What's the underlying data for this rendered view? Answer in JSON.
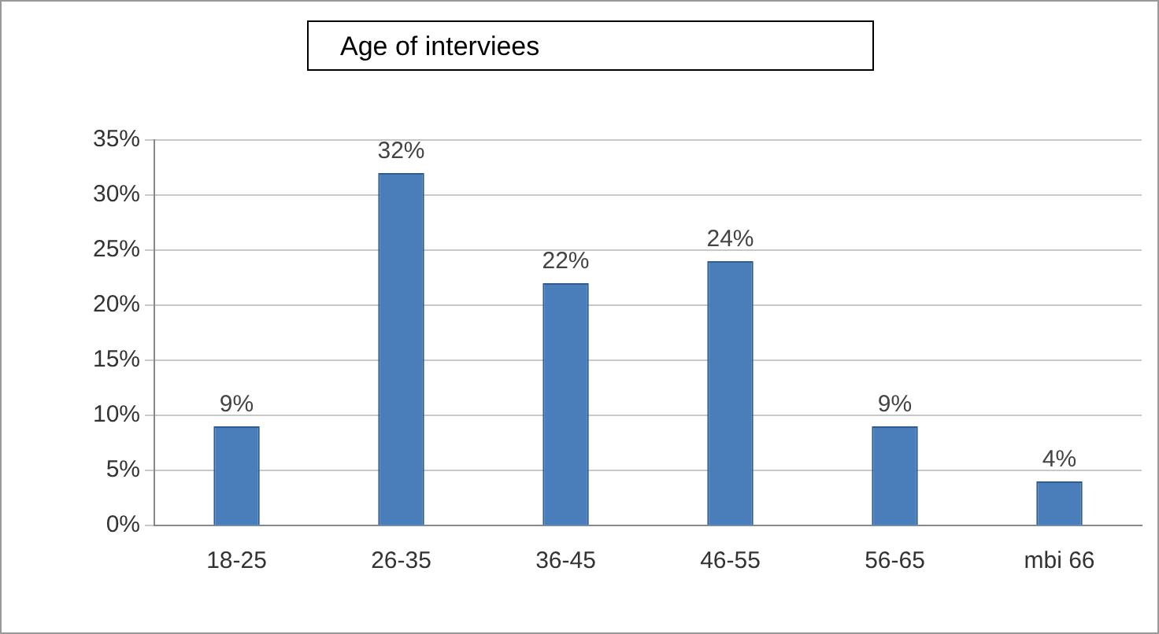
{
  "chart_data": {
    "type": "bar",
    "title": "Age of interviees",
    "categories": [
      "18-25",
      "26-35",
      "36-45",
      "46-55",
      "56-65",
      "mbi 66"
    ],
    "values": [
      9,
      32,
      22,
      24,
      9,
      4
    ],
    "value_labels": [
      "9%",
      "32%",
      "22%",
      "24%",
      "9%",
      "4%"
    ],
    "color": "#4a7ebb",
    "ylim": [
      0,
      35
    ],
    "yticks": [
      {
        "value": 0,
        "label": "0%"
      },
      {
        "value": 5,
        "label": "5%"
      },
      {
        "value": 10,
        "label": "10%"
      },
      {
        "value": 15,
        "label": "15%"
      },
      {
        "value": 20,
        "label": "20%"
      },
      {
        "value": 25,
        "label": "25%"
      },
      {
        "value": 30,
        "label": "30%"
      },
      {
        "value": 35,
        "label": "35%"
      }
    ],
    "grid": "y"
  }
}
